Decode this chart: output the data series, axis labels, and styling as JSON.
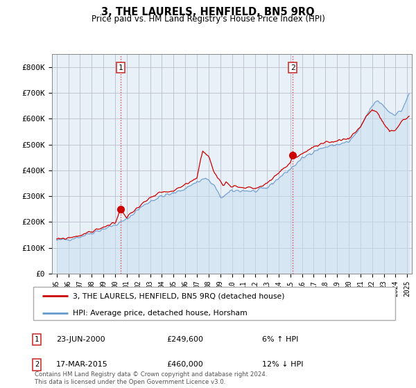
{
  "title": "3, THE LAURELS, HENFIELD, BN5 9RQ",
  "subtitle": "Price paid vs. HM Land Registry's House Price Index (HPI)",
  "legend_line1": "3, THE LAURELS, HENFIELD, BN5 9RQ (detached house)",
  "legend_line2": "HPI: Average price, detached house, Horsham",
  "annotation1_label": "1",
  "annotation1_date": "23-JUN-2000",
  "annotation1_price": "£249,600",
  "annotation1_hpi": "6% ↑ HPI",
  "annotation1_year": 2000.47,
  "annotation1_value": 249600,
  "annotation2_label": "2",
  "annotation2_date": "17-MAR-2015",
  "annotation2_price": "£460,000",
  "annotation2_hpi": "12% ↓ HPI",
  "annotation2_year": 2015.21,
  "annotation2_value": 460000,
  "footer": "Contains HM Land Registry data © Crown copyright and database right 2024.\nThis data is licensed under the Open Government Licence v3.0.",
  "price_color": "#cc0000",
  "hpi_color": "#6699cc",
  "hpi_fill_color": "#ddeeff",
  "annotation_vline_color": "#dd4444",
  "ylim": [
    0,
    850000
  ],
  "yticks": [
    0,
    100000,
    200000,
    300000,
    400000,
    500000,
    600000,
    700000,
    800000
  ],
  "ytick_labels": [
    "£0",
    "£100K",
    "£200K",
    "£300K",
    "£400K",
    "£500K",
    "£600K",
    "£700K",
    "£800K"
  ],
  "xstart": 1995.0,
  "xend": 2025.17
}
